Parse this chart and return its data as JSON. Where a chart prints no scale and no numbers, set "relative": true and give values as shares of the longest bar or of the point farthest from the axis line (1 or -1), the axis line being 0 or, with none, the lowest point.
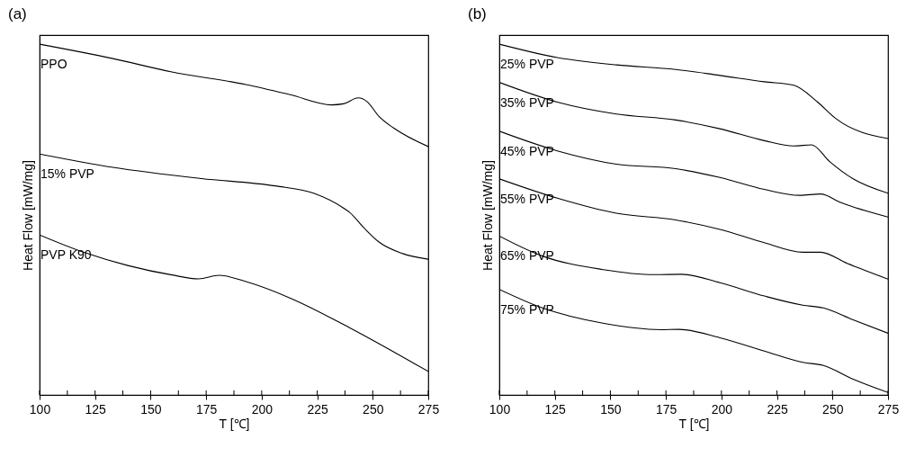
{
  "chart_data": [
    {
      "type": "line",
      "title": "(a)",
      "xlabel": "T [℃]",
      "ylabel": "Heat Flow [mW/mg]",
      "relative": true,
      "xlim": [
        100,
        275
      ],
      "xticks": [
        100,
        {
          "value": 112.5,
          "label": null
        },
        125,
        {
          "value": 137.5,
          "label": null
        },
        150,
        {
          "value": 162.5,
          "label": null
        },
        175,
        {
          "value": 187.5,
          "label": null
        },
        200,
        {
          "value": 212.5,
          "label": null
        },
        225,
        {
          "value": 237.5,
          "label": null
        },
        250,
        {
          "value": 262.5,
          "label": null
        },
        275
      ],
      "grid": false,
      "legend": false,
      "tick_labels": "x",
      "series": [
        {
          "name": "PPO",
          "color": "#000000",
          "x": [
            100,
            133,
            159.6,
            192.9,
            212.9,
            231.5,
            236.8,
            243.5,
            247.5,
            252.8,
            259.4,
            275
          ],
          "values": [
            1.0,
            0.959,
            0.921,
            0.885,
            0.856,
            0.827,
            0.83,
            0.847,
            0.836,
            0.794,
            0.761,
            0.708
          ]
        },
        {
          "name": "15% PVP",
          "color": "#000000",
          "x": [
            100,
            133,
            172.9,
            206.1,
            223.4,
            236.8,
            239.5,
            246.1,
            252.8,
            263.5,
            275
          ],
          "values": [
            0.687,
            0.649,
            0.617,
            0.596,
            0.575,
            0.533,
            0.521,
            0.476,
            0.436,
            0.403,
            0.387
          ]
        },
        {
          "name": "PVP K90",
          "color": "#000000",
          "x": [
            100,
            119.7,
            139.7,
            159.6,
            171.6,
            180.9,
            192.9,
            212.9,
            239.5,
            275
          ],
          "values": [
            0.456,
            0.407,
            0.369,
            0.342,
            0.331,
            0.341,
            0.323,
            0.276,
            0.192,
            0.067
          ]
        }
      ]
    },
    {
      "type": "line",
      "title": "(b)",
      "xlabel": "T [℃]",
      "ylabel": "Heat Flow [mW/mg]",
      "relative": true,
      "xlim": [
        100,
        275
      ],
      "xticks": [
        100,
        {
          "value": 112.5,
          "label": null
        },
        125,
        {
          "value": 137.5,
          "label": null
        },
        150,
        {
          "value": 162.5,
          "label": null
        },
        175,
        {
          "value": 187.5,
          "label": null
        },
        200,
        {
          "value": 212.5,
          "label": null
        },
        225,
        {
          "value": 237.5,
          "label": null
        },
        250,
        {
          "value": 262.5,
          "label": null
        },
        275
      ],
      "grid": false,
      "legend": false,
      "tick_labels": "x",
      "series": [
        {
          "name": "25% PVP",
          "color": "#000000",
          "x": [
            100,
            126.1,
            152.7,
            179.4,
            199.3,
            219.3,
            232.6,
            243.3,
            251.3,
            275
          ],
          "values": [
            1.0,
            0.962,
            0.941,
            0.928,
            0.911,
            0.893,
            0.883,
            0.835,
            0.789,
            0.731
          ]
        },
        {
          "name": "35% PVP",
          "color": "#000000",
          "x": [
            100,
            126.1,
            152.7,
            179.4,
            199.3,
            219.3,
            232.6,
            240.6,
            248.6,
            259.3,
            275
          ],
          "values": [
            0.891,
            0.835,
            0.801,
            0.784,
            0.759,
            0.725,
            0.71,
            0.713,
            0.666,
            0.616,
            0.575
          ]
        },
        {
          "name": "45% PVP",
          "color": "#000000",
          "x": [
            100,
            126.1,
            152.7,
            179.4,
            199.3,
            219.3,
            235.3,
            244.6,
            253.9,
            275
          ],
          "values": [
            0.752,
            0.696,
            0.658,
            0.645,
            0.62,
            0.586,
            0.569,
            0.573,
            0.548,
            0.507
          ]
        },
        {
          "name": "55% PVP",
          "color": "#000000",
          "x": [
            100,
            126.1,
            152.7,
            179.4,
            199.3,
            219.3,
            236.6,
            244.6,
            256.6,
            275
          ],
          "values": [
            0.616,
            0.561,
            0.518,
            0.499,
            0.472,
            0.434,
            0.407,
            0.407,
            0.375,
            0.33
          ]
        },
        {
          "name": "65% PVP",
          "color": "#000000",
          "x": [
            100,
            119.4,
            146.1,
            170,
            182,
            199.3,
            219.3,
            236.6,
            245.9,
            259.3,
            275
          ],
          "values": [
            0.453,
            0.396,
            0.358,
            0.343,
            0.344,
            0.32,
            0.282,
            0.256,
            0.248,
            0.214,
            0.176
          ]
        },
        {
          "name": "75% PVP",
          "color": "#000000",
          "x": [
            100,
            119.4,
            146.1,
            172.7,
            180.7,
            199.3,
            219.3,
            236.6,
            245.9,
            259.3,
            275
          ],
          "values": [
            0.301,
            0.248,
            0.205,
            0.186,
            0.187,
            0.163,
            0.125,
            0.093,
            0.084,
            0.045,
            0.007
          ]
        }
      ]
    }
  ]
}
